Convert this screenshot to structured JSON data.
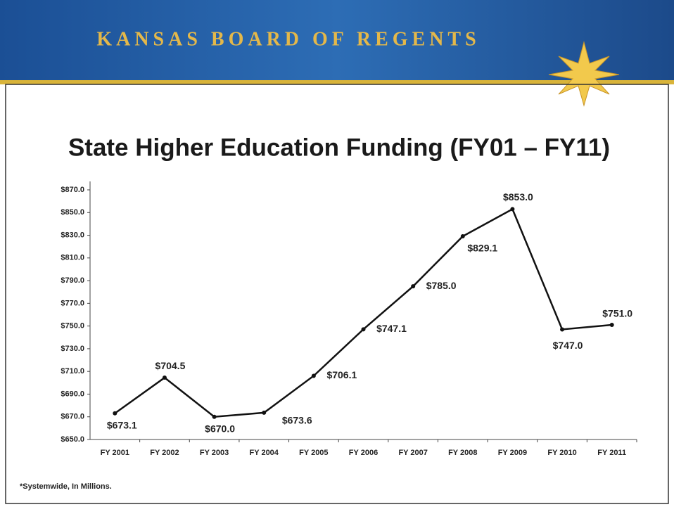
{
  "header": {
    "title": "KANSAS BOARD OF REGENTS"
  },
  "footnote": "*Systemwide, In Millions.",
  "chart_data": {
    "type": "line",
    "title": "State Higher Education Funding (FY01 – FY11)",
    "categories": [
      "FY 2001",
      "FY 2002",
      "FY 2003",
      "FY 2004",
      "FY 2005",
      "FY 2006",
      "FY 2007",
      "FY 2008",
      "FY 2009",
      "FY 2010",
      "FY 2011"
    ],
    "values": [
      673.1,
      704.5,
      670.0,
      673.6,
      706.1,
      747.1,
      785.0,
      829.1,
      853.0,
      747.0,
      751.0
    ],
    "value_labels": [
      "$673.1",
      "$704.5",
      "$670.0",
      "$673.6",
      "$706.1",
      "$747.1",
      "$785.0",
      "$829.1",
      "$853.0",
      "$747.0",
      "$751.0"
    ],
    "color": "#111111",
    "ylim": [
      650,
      870
    ],
    "yticks": [
      {
        "value": 650,
        "label": "$650.0"
      },
      {
        "value": 670,
        "label": "$670.0"
      },
      {
        "value": 690,
        "label": "$690.0"
      },
      {
        "value": 710,
        "label": "$710.0"
      },
      {
        "value": 730,
        "label": "$730.0"
      },
      {
        "value": 750,
        "label": "$750.0"
      },
      {
        "value": 770,
        "label": "$770.0"
      },
      {
        "value": 790,
        "label": "$790.0"
      },
      {
        "value": 810,
        "label": "$810.0"
      },
      {
        "value": 830,
        "label": "$830.0"
      },
      {
        "value": 850,
        "label": "$850.0"
      },
      {
        "value": 870,
        "label": "$870.0"
      }
    ],
    "grid": false
  }
}
